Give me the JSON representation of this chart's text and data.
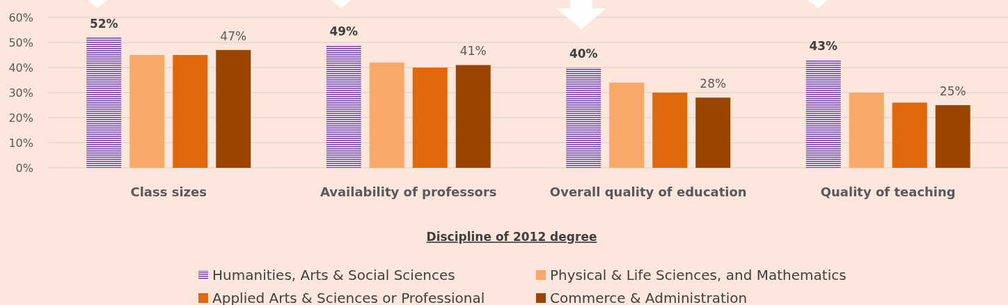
{
  "chart_data": {
    "type": "bar",
    "xlabel": "Discipline of 2012 degree",
    "categories": [
      "Class sizes",
      "Availability of professors",
      "Overall quality of education",
      "Quality of teaching"
    ],
    "series": [
      {
        "name": "Humanities, Arts  & Social Sciences",
        "color": "#7030a0",
        "values": [
          52,
          49,
          40,
          43
        ],
        "value_labels": [
          "52%",
          "49%",
          "40%",
          "43%"
        ]
      },
      {
        "name": "Physical  & Life Sciences, and Mathematics",
        "color": "#f8a868",
        "values": [
          45,
          42,
          34,
          30
        ],
        "value_labels": [
          null,
          null,
          null,
          null
        ]
      },
      {
        "name": "Applied Arts & Sciences or Professional",
        "color": "#e0680c",
        "values": [
          45,
          40,
          30,
          26
        ],
        "value_labels": [
          null,
          null,
          null,
          null
        ]
      },
      {
        "name": "Commerce & Administration",
        "color": "#9a4502",
        "values": [
          47,
          41,
          28,
          25
        ],
        "value_labels": [
          "47%",
          "41%",
          "28%",
          "25%"
        ]
      }
    ],
    "ylim": [
      0,
      60
    ],
    "yticks": [
      {
        "value": 0,
        "label": "0%"
      },
      {
        "value": 10,
        "label": "10%"
      },
      {
        "value": 20,
        "label": "20%"
      },
      {
        "value": 30,
        "label": "30%"
      },
      {
        "value": 40,
        "label": "40%"
      },
      {
        "value": 50,
        "label": "50%"
      },
      {
        "value": 60,
        "label": "60%"
      }
    ],
    "grid": "y",
    "legend": "bottom"
  }
}
